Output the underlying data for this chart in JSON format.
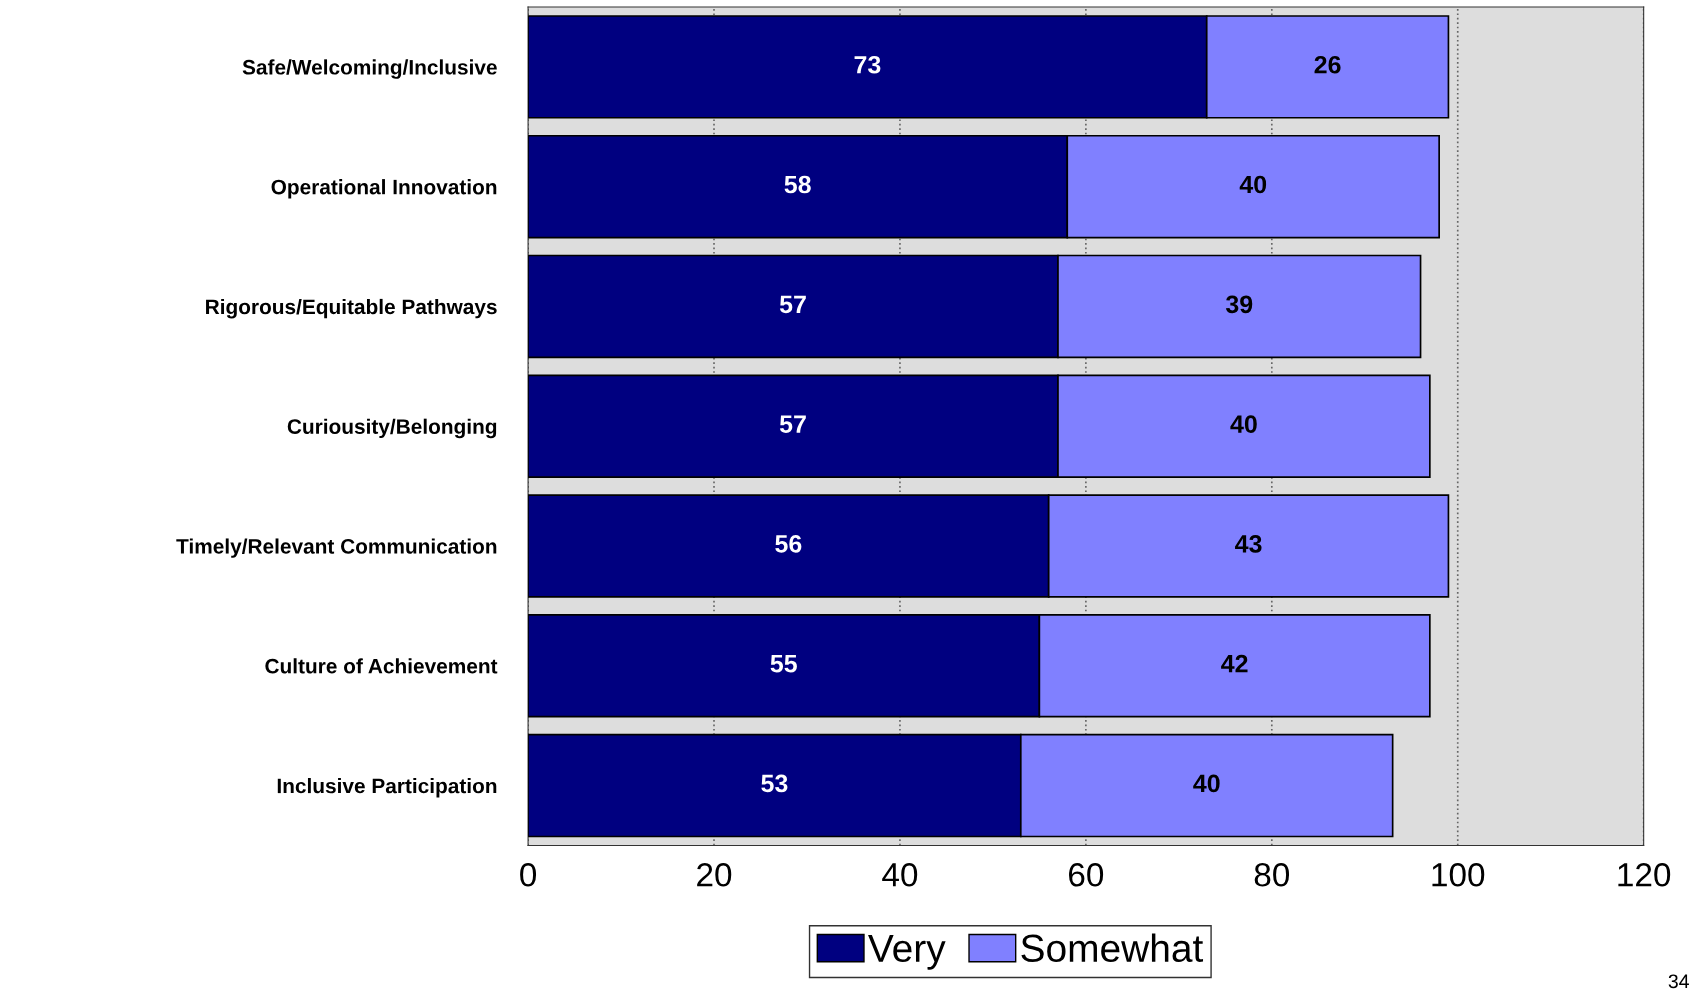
{
  "chart_data": {
    "type": "bar",
    "orientation": "horizontal",
    "stacked": true,
    "categories": [
      "Safe/Welcoming/Inclusive",
      "Operational Innovation",
      "Rigorous/Equitable Pathways",
      "Curiousity/Belonging",
      "Timely/Relevant Communication",
      "Culture of Achievement",
      "Inclusive Participation"
    ],
    "series": [
      {
        "name": "Very",
        "color": "#000080",
        "values": [
          73,
          58,
          57,
          57,
          56,
          55,
          53
        ]
      },
      {
        "name": "Somewhat",
        "color": "#8080ff",
        "values": [
          26,
          40,
          39,
          40,
          43,
          42,
          40
        ]
      }
    ],
    "xlim": [
      0,
      120
    ],
    "xticks": [
      0,
      20,
      40,
      60,
      80,
      100,
      120
    ],
    "grid": "x",
    "legend": "bottom",
    "data_labels": true,
    "annotations": [
      "34"
    ]
  }
}
